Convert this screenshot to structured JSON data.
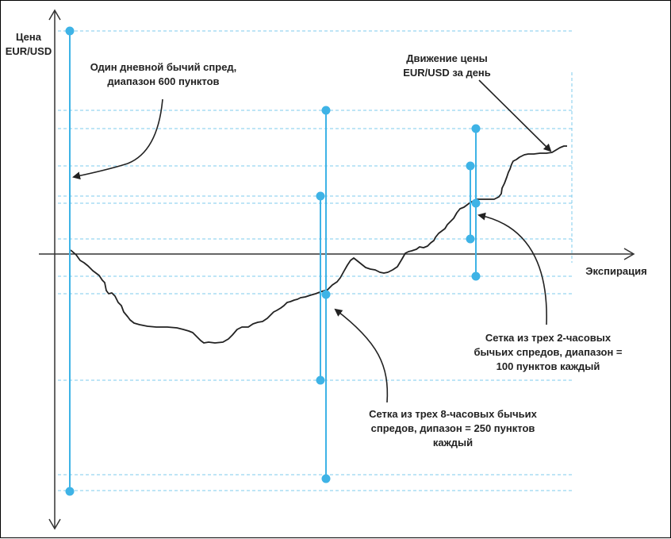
{
  "axes": {
    "y_label_line1": "Цена",
    "y_label_line2": "EUR/USD",
    "x_label": "Экспирация"
  },
  "annotations": {
    "daily_spread": {
      "line1": "Один дневной бычий спред,",
      "line2": "диапазон 600 пунктов"
    },
    "price_move": {
      "line1": "Движение цены",
      "line2": "EUR/USD за день"
    },
    "grid_2h": {
      "line1": "Сетка из трех 2-часовых",
      "line2": "бычьих спредов, диапазон =",
      "line3": "100 пунктов каждый"
    },
    "grid_8h": {
      "line1": "Сетка из трех 8-часовых бычьих",
      "line2": "спредов, дипазон = 250 пунктов",
      "line3": "каждый"
    }
  },
  "colors": {
    "spread_line": "#3eb3e6",
    "spread_dot": "#3eb3e6",
    "dashed_grid": "#7ccbed",
    "axis": "#333333",
    "price_curve": "#222222"
  }
}
